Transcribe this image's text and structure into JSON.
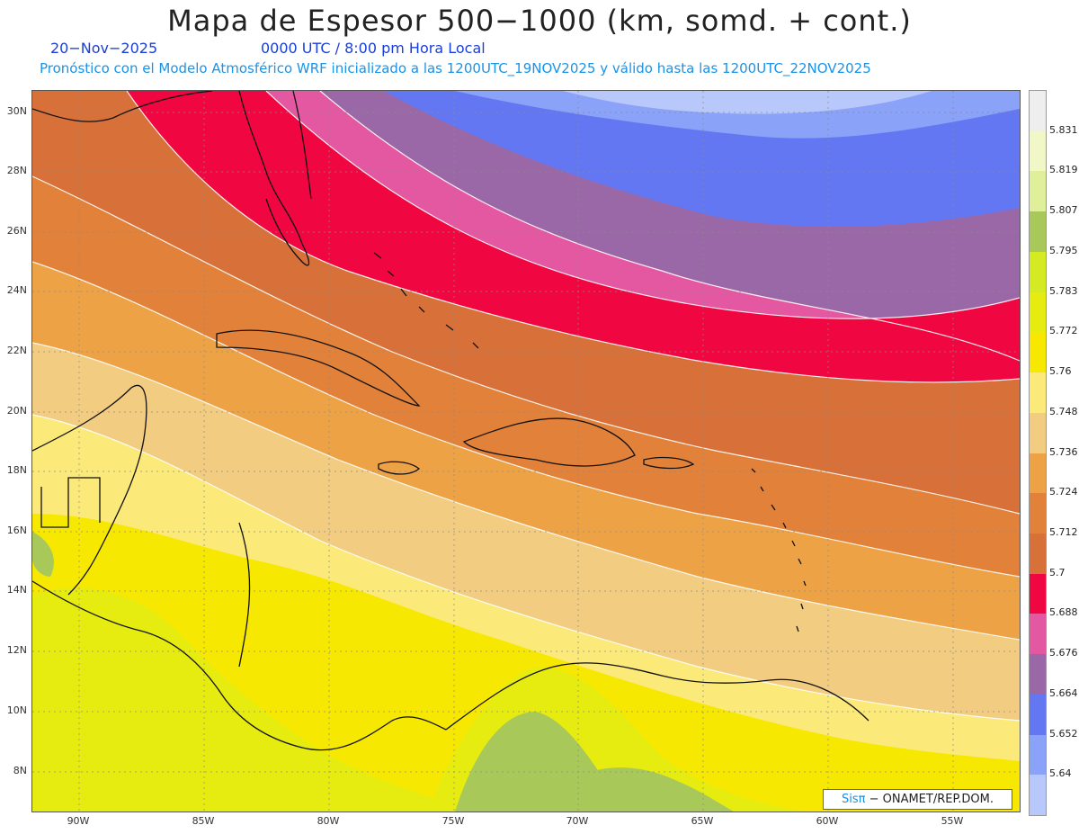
{
  "header": {
    "title": "Mapa de Espesor 500−1000 (km, somd. + cont.)",
    "date": "20−Nov−2025",
    "time": "0000 UTC / 8:00 pm Hora Local",
    "forecast": "Pronóstico con el Modelo Atmosférico WRF inicializado a las 1200UTC_19NOV2025 y válido hasta las  1200UTC_22NOV2025"
  },
  "axes": {
    "lat_labels": [
      "30N",
      "28N",
      "26N",
      "24N",
      "22N",
      "20N",
      "18N",
      "16N",
      "14N",
      "12N",
      "10N",
      "8N"
    ],
    "lon_labels": [
      "90W",
      "85W",
      "80W",
      "75W",
      "70W",
      "65W",
      "60W",
      "55W"
    ]
  },
  "colorbar": {
    "labels": [
      "5.831",
      "5.819",
      "5.807",
      "5.795",
      "5.783",
      "5.772",
      "5.76",
      "5.748",
      "5.736",
      "5.724",
      "5.712",
      "5.7",
      "5.688",
      "5.676",
      "5.664",
      "5.652",
      "5.64"
    ],
    "colors": [
      "#eeeeee",
      "#f2f7c8",
      "#e0f09a",
      "#a8c85a",
      "#d4ea22",
      "#e6ec10",
      "#f6e800",
      "#fbe97a",
      "#f2cc80",
      "#eea246",
      "#e2823a",
      "#d8703a",
      "#f00640",
      "#e458a2",
      "#9a68a6",
      "#6477f2",
      "#8aa3f8",
      "#b8c8fa"
    ]
  },
  "credit": {
    "sis": "Sis",
    "pi": "π",
    "org": "− ONAMET/REP.DOM."
  }
}
